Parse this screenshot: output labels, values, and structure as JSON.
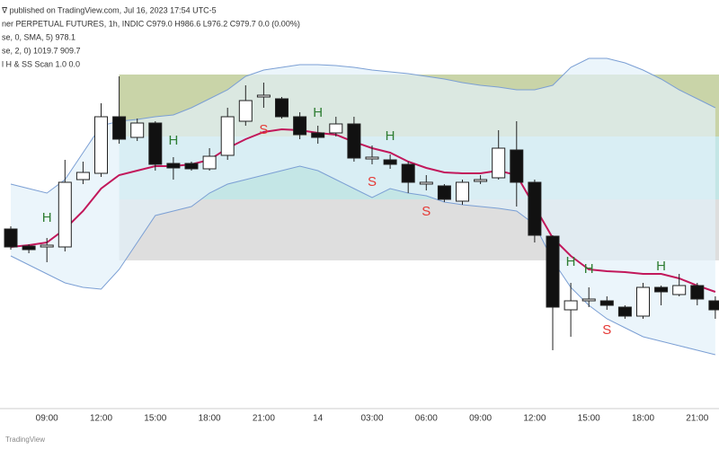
{
  "header": {
    "lines": [
      "ᐁ published on TradingView.com, Jul 16, 2023 17:54 UTC-5",
      "ner PERPETUAL FUTURES, 1h, INDIC  C979.0  H986.6  L976.2  C979.7  0.0 (0.00%)",
      "se, 0, SMA, 5)  978.1",
      "se, 2, 0)  1019.7  909.7",
      "l H & SS Scan  1.0  0.0"
    ],
    "footer": "TradingView"
  },
  "chart_data": {
    "type": "candlestick",
    "categories": [
      null,
      null,
      "09:00",
      null,
      null,
      "12:00",
      null,
      null,
      "15:00",
      null,
      null,
      "18:00",
      null,
      null,
      "21:00",
      null,
      null,
      "14",
      null,
      null,
      "03:00",
      null,
      null,
      "06:00",
      null,
      null,
      "09:00",
      null,
      null,
      "12:00",
      null,
      null,
      "15:00",
      null,
      null,
      "18:00",
      null,
      null,
      "21:00",
      null
    ],
    "open": [
      1974.5,
      1972.6,
      1972.5,
      1972.5,
      1980.0,
      1980.7,
      1987.0,
      1984.7,
      1986.3,
      1981.8,
      1981.8,
      1981.2,
      1982.7,
      1986.5,
      1989.2,
      1989.0,
      1987.0,
      1985.2,
      1985.2,
      1986.2,
      1982.3,
      1982.2,
      1981.7,
      1979.5,
      1979.3,
      1977.6,
      1979.8,
      1980.2,
      1983.3,
      1979.7,
      1973.7,
      1965.5,
      1966.5,
      1966.5,
      1965.8,
      1964.8,
      1968.0,
      1967.2,
      1968.2,
      1966.5
    ],
    "high": [
      1974.8,
      1972.8,
      1973.5,
      1982.2,
      1982.0,
      1988.5,
      1991.5,
      1986.8,
      1986.5,
      1982.5,
      1982.0,
      1983.5,
      1988.0,
      1990.5,
      1990.8,
      1989.2,
      1987.5,
      1986.0,
      1987.0,
      1987.0,
      1983.8,
      1982.8,
      1982.0,
      1980.5,
      1979.5,
      1980.0,
      1980.5,
      1985.5,
      1986.5,
      1980.0,
      1973.8,
      1968.5,
      1968.0,
      1967.0,
      1966.0,
      1968.5,
      1968.2,
      1969.5,
      1968.5,
      1967.0
    ],
    "low": [
      1972.2,
      1971.8,
      1970.8,
      1972.0,
      1979.5,
      1980.3,
      1984.0,
      1984.3,
      1981.0,
      1980.0,
      1981.0,
      1981.0,
      1982.2,
      1986.0,
      1988.0,
      1986.8,
      1984.5,
      1984.0,
      1984.8,
      1982.0,
      1981.7,
      1981.2,
      1978.5,
      1978.8,
      1977.5,
      1977.2,
      1979.5,
      1980.0,
      1977.0,
      1973.0,
      1961.0,
      1962.5,
      1965.8,
      1965.5,
      1964.5,
      1964.5,
      1966.0,
      1967.0,
      1966.0,
      1964.5
    ],
    "close": [
      1972.5,
      1972.2,
      1972.7,
      1979.7,
      1980.8,
      1987.0,
      1984.5,
      1986.3,
      1981.7,
      1981.3,
      1981.2,
      1982.6,
      1987.0,
      1988.8,
      1989.4,
      1987.0,
      1985.0,
      1984.7,
      1986.2,
      1982.4,
      1982.5,
      1981.7,
      1979.7,
      1979.7,
      1977.8,
      1979.7,
      1980.0,
      1983.5,
      1979.7,
      1973.8,
      1965.8,
      1966.5,
      1966.7,
      1966.0,
      1964.8,
      1968.0,
      1967.5,
      1968.2,
      1966.7,
      1965.5
    ],
    "up_color": "#ffffff",
    "down_color": "#111111",
    "series": [
      {
        "color": "#c2185b",
        "values": [
          1972.5,
          1972.7,
          1973.0,
          1974.5,
          1976.5,
          1979.0,
          1980.5,
          1981.0,
          1981.5,
          1981.5,
          1981.7,
          1982.2,
          1983.5,
          1984.5,
          1985.3,
          1985.6,
          1985.5,
          1985.2,
          1985.0,
          1984.2,
          1983.5,
          1983.0,
          1982.0,
          1981.3,
          1980.8,
          1980.7,
          1980.7,
          1981.0,
          1980.5,
          1977.0,
          1973.5,
          1971.5,
          1970.0,
          1969.8,
          1969.7,
          1969.5,
          1969.5,
          1969.0,
          1968.2,
          1967.5
        ]
      },
      {
        "color": "#7b9fd4",
        "values": [
          1979.5,
          1979.0,
          1978.5,
          1980.0,
          1983.0,
          1986.0,
          1986.5,
          1986.7,
          1987.0,
          1987.2,
          1988.0,
          1989.0,
          1990.0,
          1991.5,
          1992.2,
          1992.5,
          1992.8,
          1992.8,
          1992.7,
          1992.5,
          1992.2,
          1992.0,
          1991.8,
          1991.5,
          1991.2,
          1990.8,
          1990.5,
          1990.3,
          1990.0,
          1990.0,
          1990.5,
          1992.5,
          1993.5,
          1993.5,
          1993.0,
          1992.2,
          1991.2,
          1990.0,
          1989.0,
          1988.0
        ]
      },
      {
        "color": "#7b9fd4",
        "values": [
          1971.5,
          1970.5,
          1969.5,
          1968.5,
          1968.0,
          1967.8,
          1970.0,
          1973.0,
          1976.0,
          1976.5,
          1977.0,
          1978.5,
          1979.5,
          1980.0,
          1980.5,
          1981.0,
          1981.5,
          1981.0,
          1980.0,
          1979.0,
          1978.0,
          1979.0,
          1978.5,
          1978.2,
          1977.5,
          1977.2,
          1977.0,
          1976.8,
          1976.5,
          1975.0,
          1971.0,
          1968.0,
          1966.0,
          1964.5,
          1963.5,
          1962.5,
          1962.0,
          1961.5,
          1961.0,
          1960.5
        ]
      }
    ],
    "band_fill": "#e3f1fa",
    "zones": [
      {
        "start_index": 6,
        "top": 1991.7,
        "bottom": 1984.8,
        "color": "#c9d4a8"
      },
      {
        "start_index": 6,
        "top": 1984.8,
        "bottom": 1977.8,
        "color": "#c4e6e6"
      },
      {
        "start_index": 6,
        "top": 1977.8,
        "bottom": 1971.0,
        "color": "#dedede"
      }
    ],
    "annotations": [
      {
        "text": "H",
        "index": 2,
        "price": 1975.7,
        "color": "#2e7d32"
      },
      {
        "text": "H",
        "index": 9,
        "price": 1984.3,
        "color": "#2e7d32"
      },
      {
        "text": "S",
        "index": 14,
        "price": 1985.5,
        "color": "#e53935"
      },
      {
        "text": "H",
        "index": 17,
        "price": 1987.4,
        "color": "#2e7d32"
      },
      {
        "text": "S",
        "index": 20,
        "price": 1979.7,
        "color": "#e53935"
      },
      {
        "text": "H",
        "index": 21,
        "price": 1984.8,
        "color": "#2e7d32"
      },
      {
        "text": "S",
        "index": 23,
        "price": 1976.4,
        "color": "#e53935"
      },
      {
        "text": "H",
        "index": 31,
        "price": 1970.8,
        "color": "#2e7d32"
      },
      {
        "text": "H",
        "index": 32,
        "price": 1970.0,
        "color": "#2e7d32"
      },
      {
        "text": "S",
        "index": 33,
        "price": 1963.2,
        "color": "#e53935"
      },
      {
        "text": "H",
        "index": 36,
        "price": 1970.3,
        "color": "#2e7d32"
      }
    ],
    "ylim": [
      1954.5,
      2000
    ]
  }
}
